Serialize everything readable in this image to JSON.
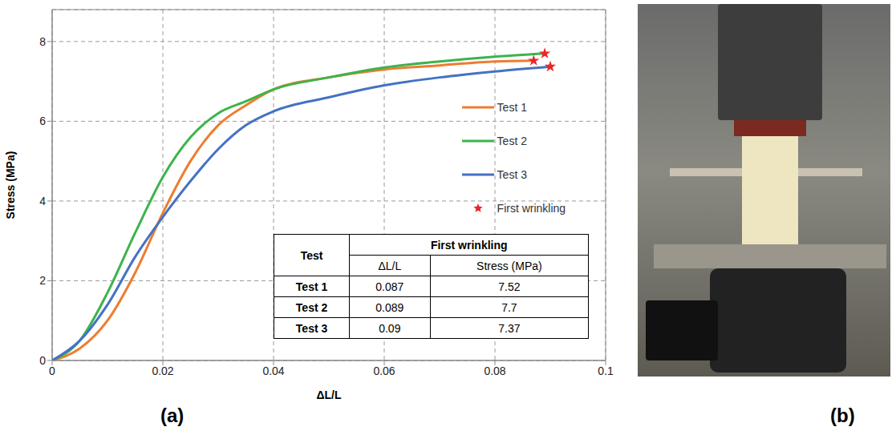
{
  "chart_data": {
    "type": "line",
    "x_label": "ΔL/L",
    "y_label": "Stress (MPa)",
    "xlim": [
      0,
      0.1
    ],
    "xticks": [
      0,
      0.02,
      0.04,
      0.06,
      0.08,
      0.1
    ],
    "ylim": [
      0,
      8.8
    ],
    "yticks": [
      0,
      2,
      4,
      6,
      8
    ],
    "grid": true,
    "legend": "right",
    "series": [
      {
        "name": "Test 1",
        "type": "line",
        "color": "#ed7d31",
        "line_style": "solid",
        "x": [
          0,
          0.005,
          0.01,
          0.015,
          0.02,
          0.025,
          0.03,
          0.035,
          0.04,
          0.05,
          0.06,
          0.07,
          0.08,
          0.087
        ],
        "values": [
          0,
          0.3,
          1.0,
          2.2,
          3.7,
          5.0,
          5.9,
          6.4,
          6.8,
          7.1,
          7.3,
          7.4,
          7.5,
          7.52
        ]
      },
      {
        "name": "Test 2",
        "type": "line",
        "color": "#3cb44b",
        "line_style": "solid",
        "x": [
          0,
          0.005,
          0.01,
          0.015,
          0.02,
          0.025,
          0.03,
          0.035,
          0.04,
          0.05,
          0.06,
          0.07,
          0.08,
          0.089
        ],
        "values": [
          0,
          0.5,
          1.7,
          3.2,
          4.6,
          5.6,
          6.2,
          6.5,
          6.8,
          7.1,
          7.35,
          7.5,
          7.62,
          7.7
        ]
      },
      {
        "name": "Test 3",
        "type": "line",
        "color": "#4472c4",
        "line_style": "solid",
        "x": [
          0,
          0.005,
          0.01,
          0.015,
          0.02,
          0.025,
          0.03,
          0.035,
          0.04,
          0.05,
          0.06,
          0.07,
          0.08,
          0.09
        ],
        "values": [
          0,
          0.5,
          1.4,
          2.6,
          3.6,
          4.5,
          5.3,
          5.9,
          6.25,
          6.6,
          6.9,
          7.1,
          7.25,
          7.37
        ]
      },
      {
        "name": "First wrinkling",
        "type": "scatter",
        "color": "#e8262a",
        "marker": "star",
        "x": [
          0.087,
          0.089,
          0.09
        ],
        "values": [
          7.52,
          7.7,
          7.37
        ]
      }
    ]
  },
  "table": {
    "header": [
      "Test",
      "First wrinkling"
    ],
    "subheader": [
      "ΔL/L",
      "Stress (MPa)"
    ],
    "rows": [
      [
        "Test 1",
        0.087,
        7.52
      ],
      [
        "Test 2",
        0.089,
        7.7
      ],
      [
        "Test 3",
        0.09,
        7.37
      ]
    ]
  },
  "panels": [
    "(a)",
    "(b)"
  ]
}
